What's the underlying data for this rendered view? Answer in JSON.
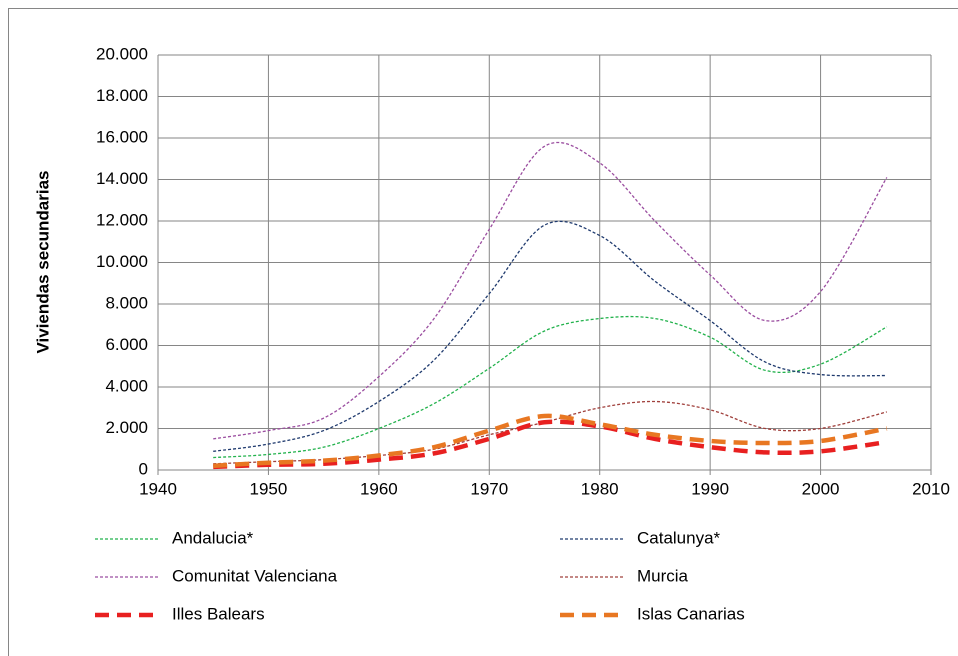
{
  "chart_data": {
    "type": "line",
    "y_label": "Viviendas secundarias",
    "x": [
      1945,
      1950,
      1955,
      1960,
      1965,
      1970,
      1975,
      1980,
      1985,
      1990,
      1995,
      2000,
      2006
    ],
    "series": [
      {
        "name": "Andalucia*",
        "color": "#22b24c",
        "values": [
          600,
          750,
          1100,
          2000,
          3200,
          4900,
          6700,
          7300,
          7300,
          6400,
          4800,
          5100,
          6900
        ]
      },
      {
        "name": "Catalunya*",
        "color": "#1f3a6e",
        "values": [
          900,
          1250,
          1900,
          3300,
          5300,
          8500,
          11800,
          11300,
          9100,
          7200,
          5200,
          4600,
          4550
        ]
      },
      {
        "name": "Comunitat Valenciana",
        "color": "#9b4ea0",
        "values": [
          1500,
          1900,
          2500,
          4500,
          7300,
          11600,
          15600,
          14800,
          12000,
          9400,
          7200,
          8600,
          14100
        ]
      },
      {
        "name": "Murcia",
        "color": "#a0403c",
        "values": [
          300,
          400,
          500,
          700,
          1000,
          1700,
          2300,
          3000,
          3300,
          2900,
          2000,
          2000,
          2800
        ]
      },
      {
        "name": "Illes Balears",
        "color": "#e82020",
        "values": [
          150,
          250,
          300,
          500,
          800,
          1500,
          2300,
          2100,
          1500,
          1100,
          850,
          900,
          1350
        ]
      },
      {
        "name": "Islas Canarias",
        "color": "#e87722",
        "values": [
          200,
          350,
          450,
          700,
          1100,
          1900,
          2600,
          2200,
          1700,
          1400,
          1300,
          1400,
          2000
        ]
      }
    ],
    "xlim": [
      1940,
      2010
    ],
    "xticks": [
      1940,
      1950,
      1960,
      1970,
      1980,
      1990,
      2000,
      2010
    ],
    "ylim": [
      0,
      20000
    ],
    "yticks": [
      0,
      {
        "value": 2000,
        "label": "2.000"
      },
      {
        "value": 4000,
        "label": "4.000"
      },
      {
        "value": 6000,
        "label": "6.000"
      },
      {
        "value": 8000,
        "label": "8.000"
      },
      {
        "value": 10000,
        "label": "10.000"
      },
      {
        "value": 12000,
        "label": "12.000"
      },
      {
        "value": 14000,
        "label": "14.000"
      },
      {
        "value": 16000,
        "label": "16.000"
      },
      {
        "value": 18000,
        "label": "18.000"
      },
      {
        "value": 20000,
        "label": "20.000"
      }
    ],
    "grid": true,
    "legend": "bottom"
  }
}
